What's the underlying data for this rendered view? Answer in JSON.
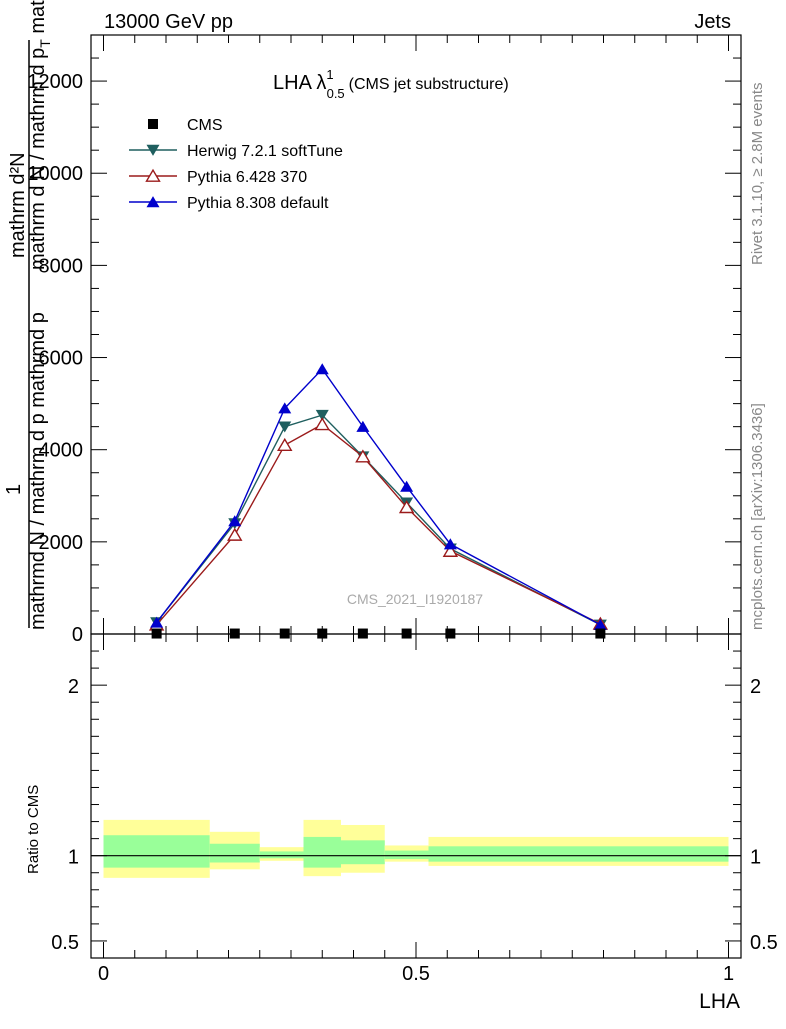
{
  "header": {
    "left": "13000 GeV pp",
    "right": "Jets"
  },
  "side_labels": {
    "rivet": "Rivet 3.1.10, ≥ 2.8M events",
    "mcplots": "mcplots.cern.ch [arXiv:1306.3436]"
  },
  "plot_title": {
    "main": "LHA λ",
    "sup": "1",
    "sub": "0.5",
    "suffix": "(CMS jet substructure)"
  },
  "y_label": {
    "one": "1",
    "numerator": "mathrm d²N",
    "denominator_top": "mathrm d N / mathrm d p",
    "denominator_sub": "T",
    "denominator_tail": " mathrm d lambda",
    "overlap": "mathrmd N / mathrm d p mathrmd p"
  },
  "watermark": "CMS_2021_I1920187",
  "ratio_ylabel": "Ratio to CMS",
  "x_label": "LHA",
  "chart_data": {
    "type": "line",
    "main": {
      "ylim": [
        0,
        13000
      ],
      "yticks": [
        0,
        2000,
        4000,
        6000,
        8000,
        10000,
        12000
      ],
      "ytick_labels": [
        "0",
        "2000",
        "4000",
        "6000",
        "8000",
        "10000",
        "12000"
      ]
    },
    "ratio": {
      "ylim": [
        0.4,
        2.3
      ],
      "yticks": [
        0.5,
        1,
        2
      ],
      "ytick_labels": [
        "0.5",
        "1",
        "2"
      ]
    },
    "xlim": [
      -0.02,
      1.02
    ],
    "xticks": [
      0,
      0.5,
      1
    ],
    "xtick_labels": [
      "0",
      "0.5",
      "1"
    ],
    "x": [
      0.085,
      0.21,
      0.29,
      0.35,
      0.415,
      0.485,
      0.555,
      0.795
    ],
    "series": [
      {
        "name": "CMS",
        "marker": "square",
        "color": "#000000",
        "line": false,
        "values": [
          10,
          10,
          10,
          10,
          10,
          10,
          10,
          10
        ]
      },
      {
        "name": "Herwig 7.2.1 softTune",
        "marker": "triangle-down",
        "color": "#1f5f5f",
        "line": true,
        "values": [
          250,
          2400,
          4500,
          4750,
          3850,
          2850,
          1850,
          200
        ]
      },
      {
        "name": "Pythia 6.428 370",
        "marker": "triangle-up-open",
        "color": "#9b1b1b",
        "line": true,
        "values": [
          200,
          2150,
          4100,
          4550,
          3850,
          2750,
          1800,
          220
        ]
      },
      {
        "name": "Pythia 8.308 default",
        "marker": "triangle-up",
        "color": "#0000cc",
        "line": true,
        "values": [
          250,
          2450,
          4900,
          5750,
          4500,
          3200,
          1950,
          200
        ]
      }
    ],
    "bands": [
      {
        "x0": 0.0,
        "x1": 0.17,
        "yellow": [
          0.87,
          1.21
        ],
        "green": [
          0.93,
          1.12
        ]
      },
      {
        "x0": 0.17,
        "x1": 0.25,
        "yellow": [
          0.92,
          1.14
        ],
        "green": [
          0.96,
          1.07
        ]
      },
      {
        "x0": 0.25,
        "x1": 0.32,
        "yellow": [
          0.97,
          1.05
        ],
        "green": [
          0.985,
          1.025
        ]
      },
      {
        "x0": 0.32,
        "x1": 0.38,
        "yellow": [
          0.88,
          1.21
        ],
        "green": [
          0.93,
          1.11
        ]
      },
      {
        "x0": 0.38,
        "x1": 0.45,
        "yellow": [
          0.9,
          1.18
        ],
        "green": [
          0.95,
          1.09
        ]
      },
      {
        "x0": 0.45,
        "x1": 0.52,
        "yellow": [
          0.965,
          1.06
        ],
        "green": [
          0.98,
          1.03
        ]
      },
      {
        "x0": 0.52,
        "x1": 1.0,
        "yellow": [
          0.94,
          1.11
        ],
        "green": [
          0.965,
          1.055
        ]
      }
    ],
    "band_colors": {
      "yellow": "#ffff99",
      "green": "#99ff99"
    }
  }
}
